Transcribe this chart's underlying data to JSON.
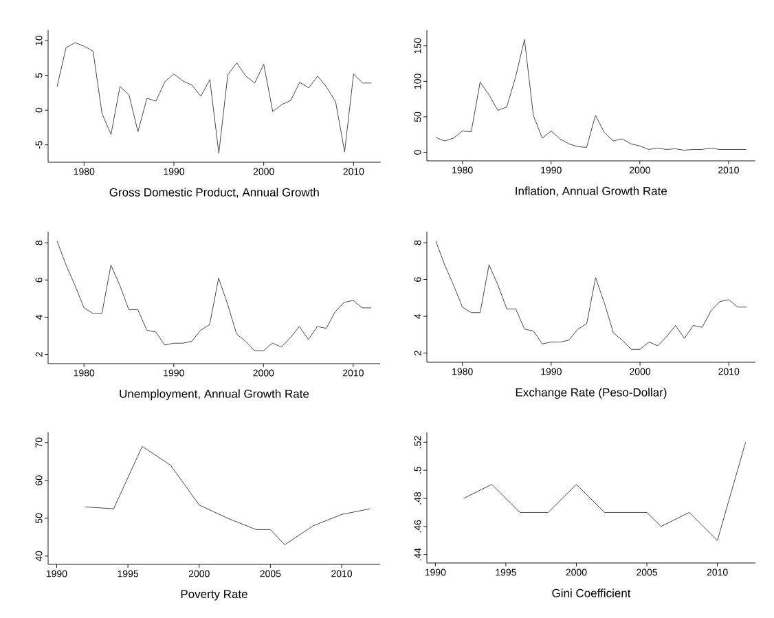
{
  "chart_data": [
    {
      "type": "line",
      "xlabel": "Gross Domestic Product, Annual Growth",
      "color": "#333333",
      "marker": "none",
      "xlim": [
        1976,
        2013
      ],
      "ylim": [
        -7.5,
        11.5
      ],
      "xticks": [
        1980,
        1990,
        2000,
        2010
      ],
      "yticks": [
        -5,
        0,
        5,
        10
      ],
      "x": [
        1977,
        1978,
        1979,
        1980,
        1981,
        1982,
        1983,
        1984,
        1985,
        1986,
        1987,
        1988,
        1989,
        1990,
        1991,
        1992,
        1993,
        1994,
        1995,
        1996,
        1997,
        1998,
        1999,
        2000,
        2001,
        2002,
        2003,
        2004,
        2005,
        2006,
        2007,
        2008,
        2009,
        2010,
        2011,
        2012
      ],
      "values": [
        3.4,
        9.0,
        9.7,
        9.2,
        8.5,
        -0.5,
        -3.5,
        3.4,
        2.2,
        -3.1,
        1.7,
        1.3,
        4.1,
        5.2,
        4.2,
        3.6,
        2.0,
        4.4,
        -6.2,
        5.1,
        6.8,
        4.9,
        3.9,
        6.6,
        -0.2,
        0.8,
        1.4,
        4.0,
        3.2,
        4.9,
        3.3,
        1.2,
        -6.0,
        5.2,
        3.9,
        3.9
      ]
    },
    {
      "type": "line",
      "xlabel": "Inflation, Annual Growth Rate",
      "color": "#333333",
      "marker": "none",
      "xlim": [
        1976,
        2013
      ],
      "ylim": [
        -12,
        172
      ],
      "xticks": [
        1980,
        1990,
        2000,
        2010
      ],
      "yticks": [
        0,
        50,
        100,
        150
      ],
      "x": [
        1977,
        1978,
        1979,
        1980,
        1981,
        1982,
        1983,
        1984,
        1985,
        1986,
        1987,
        1988,
        1989,
        1990,
        1991,
        1992,
        1993,
        1994,
        1995,
        1996,
        1997,
        1998,
        1999,
        2000,
        2001,
        2002,
        2003,
        2004,
        2005,
        2006,
        2007,
        2008,
        2009,
        2010,
        2011,
        2012
      ],
      "values": [
        21,
        16,
        20,
        30,
        29,
        99,
        81,
        59,
        64,
        106,
        159,
        52,
        20,
        30,
        19,
        12,
        8,
        7,
        52,
        28,
        16,
        19,
        12,
        9,
        4,
        6,
        4,
        5,
        3,
        4,
        4,
        6,
        4,
        4,
        4,
        4
      ]
    },
    {
      "type": "line",
      "xlabel": "Unemployment, Annual Growth Rate",
      "color": "#333333",
      "marker": "none",
      "xlim": [
        1976,
        2013
      ],
      "ylim": [
        1.5,
        8.6
      ],
      "xticks": [
        1980,
        1990,
        2000,
        2010
      ],
      "yticks": [
        2,
        4,
        6,
        8
      ],
      "x": [
        1977,
        1978,
        1979,
        1980,
        1981,
        1982,
        1983,
        1984,
        1985,
        1986,
        1987,
        1988,
        1989,
        1990,
        1991,
        1992,
        1993,
        1994,
        1995,
        1996,
        1997,
        1998,
        1999,
        2000,
        2001,
        2002,
        2003,
        2004,
        2005,
        2006,
        2007,
        2008,
        2009,
        2010,
        2011,
        2012
      ],
      "values": [
        8.1,
        6.8,
        5.7,
        4.5,
        4.2,
        4.2,
        6.8,
        5.7,
        4.4,
        4.4,
        3.3,
        3.2,
        2.5,
        2.6,
        2.6,
        2.7,
        3.3,
        3.6,
        6.1,
        4.7,
        3.1,
        2.7,
        2.2,
        2.2,
        2.6,
        2.4,
        2.9,
        3.5,
        2.8,
        3.5,
        3.4,
        4.3,
        4.8,
        4.9,
        4.5,
        4.5
      ]
    },
    {
      "type": "line",
      "xlabel": "Exchange Rate (Peso-Dollar)",
      "color": "#333333",
      "marker": "none",
      "xlim": [
        1976,
        2013
      ],
      "ylim": [
        1.5,
        8.6
      ],
      "xticks": [
        1980,
        1990,
        2000,
        2010
      ],
      "yticks": [
        2,
        4,
        6,
        8
      ],
      "x": [
        1977,
        1978,
        1979,
        1980,
        1981,
        1982,
        1983,
        1984,
        1985,
        1986,
        1987,
        1988,
        1989,
        1990,
        1991,
        1992,
        1993,
        1994,
        1995,
        1996,
        1997,
        1998,
        1999,
        2000,
        2001,
        2002,
        2003,
        2004,
        2005,
        2006,
        2007,
        2008,
        2009,
        2010,
        2011,
        2012
      ],
      "values": [
        8.1,
        6.8,
        5.7,
        4.5,
        4.2,
        4.2,
        6.8,
        5.7,
        4.4,
        4.4,
        3.3,
        3.2,
        2.5,
        2.6,
        2.6,
        2.7,
        3.3,
        3.6,
        6.1,
        4.7,
        3.1,
        2.7,
        2.2,
        2.2,
        2.6,
        2.4,
        2.9,
        3.5,
        2.8,
        3.5,
        3.4,
        4.3,
        4.8,
        4.9,
        4.5,
        4.5
      ]
    },
    {
      "type": "line",
      "xlabel": "Poverty Rate",
      "color": "#333333",
      "marker": "none",
      "xlim": [
        1989.4,
        2012.7
      ],
      "ylim": [
        37.8,
        72.7
      ],
      "xticks": [
        1990,
        1995,
        2000,
        2005,
        2010
      ],
      "yticks": [
        40,
        50,
        60,
        70
      ],
      "x": [
        1992,
        1994,
        1996,
        1998,
        2000,
        2002,
        2004,
        2005,
        2006,
        2008,
        2010,
        2012
      ],
      "values": [
        53,
        52.5,
        69,
        64,
        53.5,
        50,
        47,
        47,
        43,
        48,
        51,
        52.5
      ]
    },
    {
      "type": "line",
      "xlabel": "Gini Coefficient",
      "color": "#333333",
      "marker": "none",
      "xlim": [
        1989.4,
        2012.7
      ],
      "ylim": [
        0.434,
        0.527
      ],
      "xticks": [
        1990,
        1995,
        2000,
        2005,
        2010
      ],
      "yticks": [
        {
          "value": 0.44,
          "label": ".44"
        },
        {
          "value": 0.46,
          "label": ".46"
        },
        {
          "value": 0.48,
          "label": ".48"
        },
        {
          "value": 0.5,
          "label": ".5"
        },
        {
          "value": 0.52,
          "label": ".52"
        }
      ],
      "x": [
        1992,
        1994,
        1996,
        1998,
        2000,
        2002,
        2004,
        2005,
        2006,
        2008,
        2010,
        2012
      ],
      "values": [
        0.48,
        0.49,
        0.47,
        0.47,
        0.49,
        0.47,
        0.47,
        0.47,
        0.46,
        0.47,
        0.45,
        0.52
      ]
    }
  ]
}
